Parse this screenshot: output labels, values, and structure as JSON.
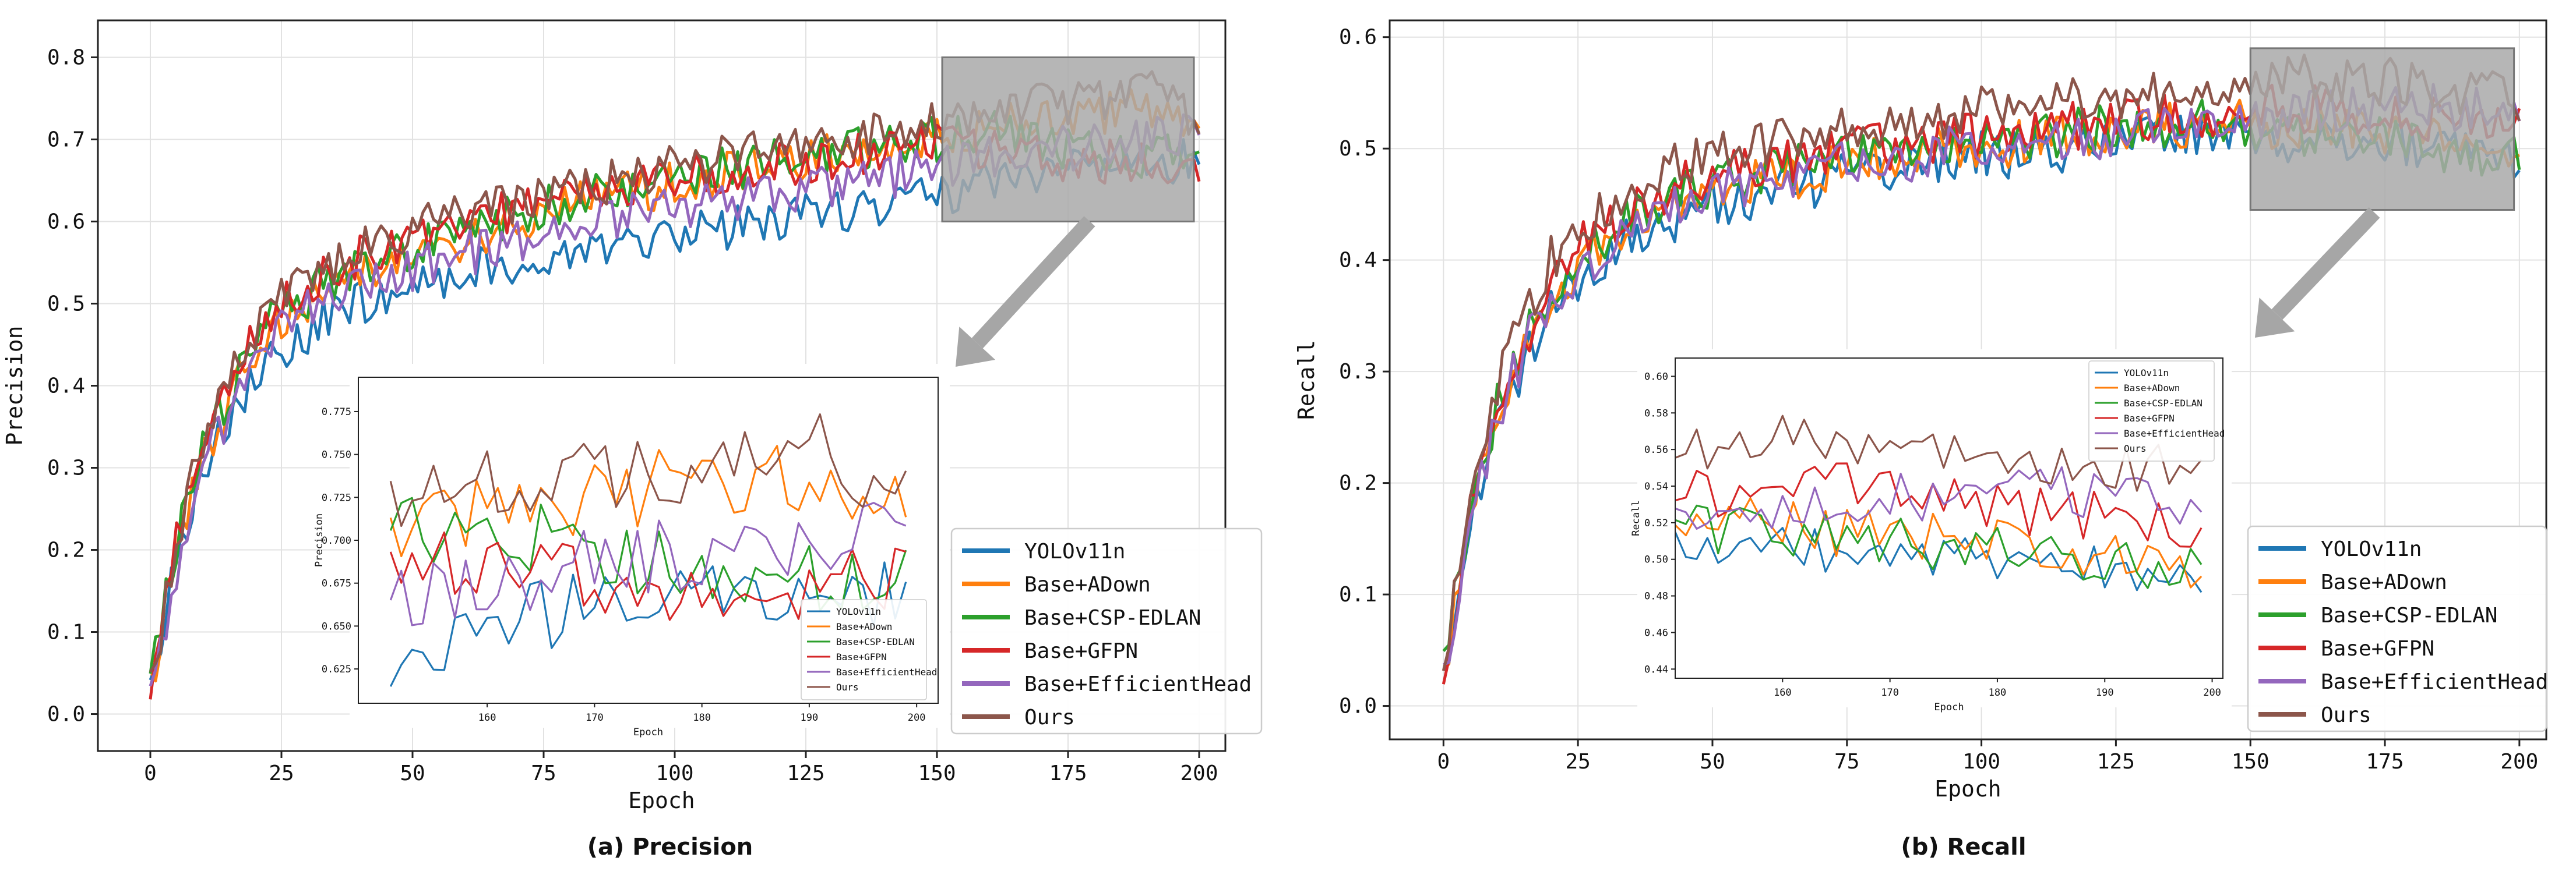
{
  "figure": {
    "captions": [
      "(a) Precision",
      "(b) Recall"
    ]
  },
  "chart_data": [
    {
      "type": "line",
      "title": "",
      "caption": "(a) Precision",
      "xlabel": "Epoch",
      "ylabel": "Precision",
      "xlim": [
        -10,
        205
      ],
      "ylim": [
        -0.045,
        0.845
      ],
      "xticks": [
        0,
        25,
        50,
        75,
        100,
        125,
        150,
        175,
        200
      ],
      "yticks": [
        0.0,
        0.1,
        0.2,
        0.3,
        0.4,
        0.5,
        0.6,
        0.7,
        0.8
      ],
      "grid": true,
      "legend": "lower-right",
      "zoom_region": {
        "x": [
          151,
          199
        ],
        "y": [
          0.6,
          0.8
        ]
      },
      "inset": {
        "xlabel": "Epoch",
        "ylabel": "Precision",
        "xlim": [
          148,
          202
        ],
        "ylim": [
          0.605,
          0.795
        ],
        "xticks": [
          160,
          170,
          180,
          190,
          200
        ],
        "yticks": [
          0.625,
          0.65,
          0.675,
          0.7,
          0.725,
          0.75,
          0.775
        ],
        "legend": "lower-left"
      },
      "x": [
        0,
        5,
        10,
        15,
        20,
        25,
        30,
        35,
        40,
        45,
        50,
        55,
        60,
        65,
        70,
        75,
        80,
        85,
        90,
        95,
        100,
        105,
        110,
        115,
        120,
        125,
        130,
        135,
        140,
        145,
        150,
        155,
        160,
        165,
        170,
        175,
        180,
        185,
        190,
        195,
        200
      ],
      "series": [
        {
          "name": "YOLOv11n",
          "color": "#1f77b4",
          "values": [
            0.02,
            0.19,
            0.29,
            0.36,
            0.41,
            0.44,
            0.46,
            0.49,
            0.5,
            0.51,
            0.52,
            0.53,
            0.54,
            0.545,
            0.55,
            0.555,
            0.56,
            0.565,
            0.57,
            0.575,
            0.58,
            0.585,
            0.59,
            0.595,
            0.6,
            0.605,
            0.61,
            0.615,
            0.62,
            0.625,
            0.63,
            0.64,
            0.65,
            0.655,
            0.66,
            0.665,
            0.67,
            0.67,
            0.675,
            0.67,
            0.675
          ]
        },
        {
          "name": "Base+ADown",
          "color": "#ff7f0e",
          "values": [
            0.03,
            0.2,
            0.31,
            0.38,
            0.44,
            0.48,
            0.5,
            0.52,
            0.54,
            0.55,
            0.56,
            0.57,
            0.58,
            0.59,
            0.6,
            0.61,
            0.62,
            0.63,
            0.635,
            0.64,
            0.645,
            0.65,
            0.66,
            0.665,
            0.67,
            0.675,
            0.68,
            0.685,
            0.69,
            0.695,
            0.7,
            0.71,
            0.715,
            0.72,
            0.725,
            0.73,
            0.735,
            0.73,
            0.74,
            0.73,
            0.725
          ]
        },
        {
          "name": "Base+CSP-EDLAN",
          "color": "#2ca02c",
          "values": [
            0.04,
            0.21,
            0.32,
            0.39,
            0.45,
            0.49,
            0.51,
            0.53,
            0.55,
            0.56,
            0.57,
            0.58,
            0.59,
            0.6,
            0.61,
            0.62,
            0.625,
            0.63,
            0.64,
            0.645,
            0.65,
            0.66,
            0.665,
            0.67,
            0.675,
            0.68,
            0.685,
            0.69,
            0.695,
            0.7,
            0.7,
            0.705,
            0.71,
            0.7,
            0.695,
            0.69,
            0.685,
            0.685,
            0.68,
            0.68,
            0.675
          ]
        },
        {
          "name": "Base+GFPN",
          "color": "#d62728",
          "values": [
            0.03,
            0.22,
            0.33,
            0.4,
            0.46,
            0.5,
            0.52,
            0.54,
            0.56,
            0.57,
            0.58,
            0.59,
            0.6,
            0.61,
            0.615,
            0.62,
            0.63,
            0.635,
            0.64,
            0.645,
            0.65,
            0.655,
            0.66,
            0.665,
            0.67,
            0.675,
            0.68,
            0.685,
            0.69,
            0.69,
            0.695,
            0.69,
            0.685,
            0.68,
            0.675,
            0.675,
            0.67,
            0.675,
            0.67,
            0.675,
            0.675
          ]
        },
        {
          "name": "Base+EfficientHead",
          "color": "#9467bd",
          "values": [
            0.02,
            0.18,
            0.3,
            0.37,
            0.43,
            0.47,
            0.49,
            0.51,
            0.52,
            0.53,
            0.54,
            0.55,
            0.56,
            0.57,
            0.58,
            0.585,
            0.59,
            0.6,
            0.605,
            0.61,
            0.615,
            0.62,
            0.625,
            0.63,
            0.635,
            0.64,
            0.645,
            0.65,
            0.655,
            0.66,
            0.665,
            0.67,
            0.675,
            0.68,
            0.685,
            0.69,
            0.69,
            0.695,
            0.7,
            0.7,
            0.705
          ]
        },
        {
          "name": "Ours",
          "color": "#8c564b",
          "values": [
            0.03,
            0.21,
            0.34,
            0.41,
            0.47,
            0.51,
            0.53,
            0.55,
            0.57,
            0.58,
            0.59,
            0.6,
            0.61,
            0.62,
            0.625,
            0.63,
            0.64,
            0.645,
            0.65,
            0.66,
            0.665,
            0.67,
            0.68,
            0.685,
            0.69,
            0.695,
            0.7,
            0.705,
            0.71,
            0.715,
            0.72,
            0.725,
            0.73,
            0.735,
            0.74,
            0.74,
            0.745,
            0.75,
            0.76,
            0.74,
            0.73
          ]
        }
      ]
    },
    {
      "type": "line",
      "title": "",
      "caption": "(b) Recall",
      "xlabel": "Epoch",
      "ylabel": "Recall",
      "xlim": [
        -10,
        205
      ],
      "ylim": [
        -0.03,
        0.615
      ],
      "xticks": [
        0,
        25,
        50,
        75,
        100,
        125,
        150,
        175,
        200
      ],
      "yticks": [
        0.0,
        0.1,
        0.2,
        0.3,
        0.4,
        0.5,
        0.6
      ],
      "grid": true,
      "legend": "lower-right",
      "zoom_region": {
        "x": [
          150,
          199
        ],
        "y": [
          0.445,
          0.59
        ]
      },
      "inset": {
        "xlabel": "Epoch",
        "ylabel": "Recall",
        "xlim": [
          150,
          201
        ],
        "ylim": [
          0.435,
          0.61
        ],
        "xticks": [
          160,
          170,
          180,
          190,
          200
        ],
        "yticks": [
          0.44,
          0.46,
          0.48,
          0.5,
          0.52,
          0.54,
          0.56,
          0.58,
          0.6
        ],
        "legend": "top-left"
      },
      "x": [
        0,
        5,
        10,
        15,
        20,
        25,
        30,
        35,
        40,
        45,
        50,
        55,
        60,
        65,
        70,
        75,
        80,
        85,
        90,
        95,
        100,
        105,
        110,
        115,
        120,
        125,
        130,
        135,
        140,
        145,
        150,
        155,
        160,
        165,
        170,
        175,
        180,
        185,
        190,
        195,
        200
      ],
      "series": [
        {
          "name": "YOLOv11n",
          "color": "#1f77b4",
          "values": [
            0.02,
            0.16,
            0.25,
            0.31,
            0.35,
            0.38,
            0.4,
            0.42,
            0.43,
            0.44,
            0.45,
            0.455,
            0.46,
            0.465,
            0.47,
            0.475,
            0.48,
            0.485,
            0.49,
            0.49,
            0.495,
            0.495,
            0.5,
            0.5,
            0.505,
            0.505,
            0.51,
            0.51,
            0.515,
            0.515,
            0.515,
            0.51,
            0.51,
            0.505,
            0.505,
            0.5,
            0.5,
            0.495,
            0.495,
            0.49,
            0.49
          ]
        },
        {
          "name": "Base+ADown",
          "color": "#ff7f0e",
          "values": [
            0.02,
            0.17,
            0.26,
            0.32,
            0.36,
            0.39,
            0.41,
            0.43,
            0.44,
            0.45,
            0.46,
            0.465,
            0.47,
            0.475,
            0.48,
            0.485,
            0.49,
            0.495,
            0.5,
            0.5,
            0.505,
            0.505,
            0.51,
            0.51,
            0.515,
            0.515,
            0.52,
            0.52,
            0.52,
            0.525,
            0.525,
            0.52,
            0.52,
            0.515,
            0.515,
            0.51,
            0.51,
            0.505,
            0.5,
            0.5,
            0.495
          ]
        },
        {
          "name": "Base+CSP-EDLAN",
          "color": "#2ca02c",
          "values": [
            0.03,
            0.18,
            0.27,
            0.33,
            0.37,
            0.4,
            0.42,
            0.44,
            0.45,
            0.46,
            0.47,
            0.475,
            0.48,
            0.485,
            0.49,
            0.49,
            0.495,
            0.5,
            0.5,
            0.505,
            0.505,
            0.51,
            0.51,
            0.515,
            0.515,
            0.52,
            0.52,
            0.52,
            0.525,
            0.525,
            0.52,
            0.515,
            0.515,
            0.51,
            0.51,
            0.505,
            0.505,
            0.5,
            0.5,
            0.495,
            0.49
          ]
        },
        {
          "name": "Base+GFPN",
          "color": "#d62728",
          "values": [
            0.02,
            0.18,
            0.27,
            0.33,
            0.38,
            0.41,
            0.43,
            0.45,
            0.46,
            0.47,
            0.475,
            0.48,
            0.485,
            0.49,
            0.495,
            0.5,
            0.5,
            0.505,
            0.505,
            0.51,
            0.51,
            0.515,
            0.515,
            0.52,
            0.52,
            0.525,
            0.525,
            0.53,
            0.53,
            0.53,
            0.535,
            0.535,
            0.535,
            0.54,
            0.535,
            0.535,
            0.53,
            0.525,
            0.525,
            0.52,
            0.52
          ]
        },
        {
          "name": "Base+EfficientHead",
          "color": "#9467bd",
          "values": [
            0.02,
            0.17,
            0.26,
            0.32,
            0.36,
            0.39,
            0.41,
            0.43,
            0.44,
            0.45,
            0.46,
            0.465,
            0.47,
            0.475,
            0.48,
            0.485,
            0.49,
            0.49,
            0.495,
            0.5,
            0.5,
            0.505,
            0.505,
            0.51,
            0.51,
            0.515,
            0.515,
            0.52,
            0.52,
            0.52,
            0.525,
            0.525,
            0.53,
            0.53,
            0.535,
            0.535,
            0.535,
            0.54,
            0.535,
            0.53,
            0.525
          ]
        },
        {
          "name": "Ours",
          "color": "#8c564b",
          "values": [
            0.03,
            0.19,
            0.29,
            0.35,
            0.4,
            0.43,
            0.45,
            0.47,
            0.48,
            0.49,
            0.495,
            0.5,
            0.505,
            0.51,
            0.515,
            0.52,
            0.52,
            0.525,
            0.53,
            0.53,
            0.535,
            0.535,
            0.54,
            0.54,
            0.545,
            0.545,
            0.55,
            0.55,
            0.555,
            0.555,
            0.56,
            0.56,
            0.565,
            0.565,
            0.56,
            0.56,
            0.555,
            0.555,
            0.55,
            0.55,
            0.545
          ]
        }
      ]
    }
  ]
}
